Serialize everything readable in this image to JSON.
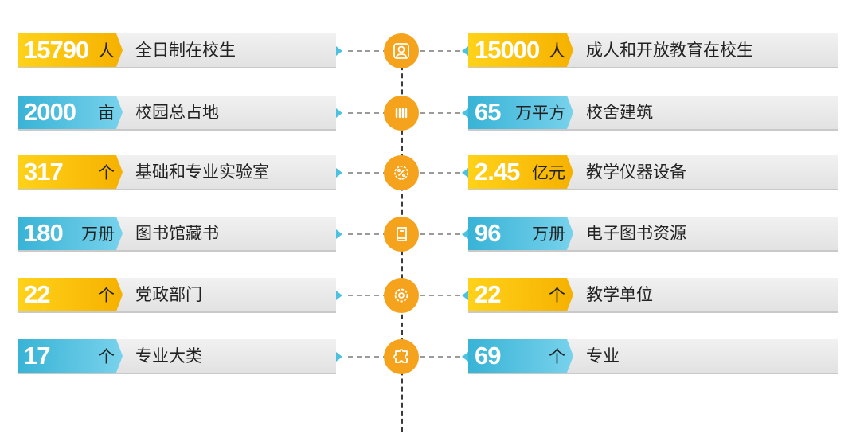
{
  "colors": {
    "yellow": "#f6b100",
    "blue": "#38b3d6",
    "orange": "#f5a21c",
    "card": "#e8e8e8"
  },
  "rows": [
    {
      "icon": "user-frame-icon",
      "left": {
        "value": "15790",
        "unit": "人",
        "label": "全日制在校生",
        "color": "yellow"
      },
      "right": {
        "value": "15000",
        "unit": "人",
        "label": "成人和开放教育在校生",
        "color": "yellow"
      }
    },
    {
      "icon": "columns-icon",
      "left": {
        "value": "2000",
        "unit": "亩",
        "label": "校园总占地",
        "color": "blue"
      },
      "right": {
        "value": "65",
        "unit": "万平方",
        "label": "校舍建筑",
        "color": "blue"
      }
    },
    {
      "icon": "percent-gear-icon",
      "left": {
        "value": "317",
        "unit": "个",
        "label": "基础和专业实验室",
        "color": "yellow"
      },
      "right": {
        "value": "2.45",
        "unit": "亿元",
        "label": "教学仪器设备",
        "color": "yellow"
      }
    },
    {
      "icon": "book-icon",
      "left": {
        "value": "180",
        "unit": "万册",
        "label": "图书馆藏书",
        "color": "blue"
      },
      "right": {
        "value": "96",
        "unit": "万册",
        "label": "电子图书资源",
        "color": "blue"
      }
    },
    {
      "icon": "gear-icon",
      "left": {
        "value": "22",
        "unit": "个",
        "label": "党政部门",
        "color": "yellow"
      },
      "right": {
        "value": "22",
        "unit": "个",
        "label": "教学单位",
        "color": "yellow"
      }
    },
    {
      "icon": "puzzle-icon",
      "left": {
        "value": "17",
        "unit": "个",
        "label": "专业大类",
        "color": "blue"
      },
      "right": {
        "value": "69",
        "unit": "个",
        "label": "专业",
        "color": "blue"
      }
    }
  ]
}
